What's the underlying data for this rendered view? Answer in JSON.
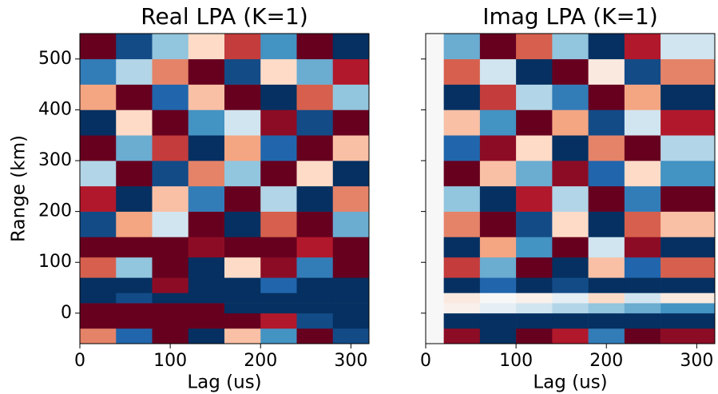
{
  "chart_data": [
    {
      "type": "heatmap",
      "title": "Real LPA (K=1)",
      "xlabel": "Lag (us)",
      "ylabel": "Range (km)",
      "xlim": [
        0,
        320
      ],
      "ylim": [
        -60,
        550
      ],
      "xticks": [
        0,
        100,
        200,
        300
      ],
      "yticks": [
        0,
        100,
        200,
        300,
        400,
        500
      ],
      "show_ytick_labels": true,
      "clim": [
        -1,
        1
      ],
      "colormap": [
        "#053061",
        "#2166ac",
        "#4393c3",
        "#92c5de",
        "#d1e5f0",
        "#f7f7f7",
        "#fddbc7",
        "#f4a582",
        "#d6604d",
        "#b2182b",
        "#67001f"
      ],
      "xbins": [
        0,
        40,
        80,
        120,
        160,
        200,
        240,
        280,
        320
      ],
      "ybins": [
        -60,
        -30,
        0,
        20,
        40,
        70,
        110,
        150,
        200,
        250,
        300,
        350,
        400,
        450,
        500,
        550
      ],
      "values": [
        [
          0.5,
          -0.8,
          1,
          -1,
          0.3,
          -0.6,
          1,
          -0.9
        ],
        [
          1,
          1,
          1,
          1,
          1,
          0.8,
          -0.9,
          -1
        ],
        [
          1,
          1,
          1,
          1,
          -1,
          -1,
          -1,
          -1
        ],
        [
          -1,
          -0.9,
          -1,
          -1,
          -1,
          -1,
          -1,
          -1
        ],
        [
          -1,
          -1,
          0.9,
          -1,
          -1,
          -0.8,
          -1,
          -1
        ],
        [
          0.6,
          -0.4,
          1,
          -1,
          0.2,
          0.9,
          -0.7,
          1
        ],
        [
          1,
          1,
          1,
          0.9,
          1,
          1,
          0.8,
          1
        ],
        [
          -0.9,
          0.4,
          -0.2,
          1,
          -1,
          0.6,
          1,
          -0.5
        ],
        [
          0.8,
          -1,
          0.3,
          -0.7,
          1,
          -0.3,
          -1,
          0.5
        ],
        [
          -0.3,
          1,
          -0.9,
          0.5,
          -0.4,
          1,
          0.2,
          -1
        ],
        [
          1,
          -0.5,
          0.7,
          -1,
          0.4,
          -0.8,
          1,
          0.3
        ],
        [
          -1,
          0.2,
          1,
          -0.6,
          -0.2,
          0.9,
          -0.9,
          1
        ],
        [
          0.4,
          1,
          -0.8,
          0.3,
          1,
          -1,
          0.6,
          -0.4
        ],
        [
          -0.7,
          -0.3,
          0.5,
          1,
          -0.9,
          0.2,
          -0.5,
          0.8
        ],
        [
          1,
          -0.9,
          -0.4,
          0.2,
          0.7,
          -0.6,
          1,
          -1
        ]
      ]
    },
    {
      "type": "heatmap",
      "title": "Imag LPA (K=1)",
      "xlabel": "Lag (us)",
      "xlim": [
        0,
        320
      ],
      "ylim": [
        -60,
        550
      ],
      "xticks": [
        0,
        100,
        200,
        300
      ],
      "yticks": [
        0,
        100,
        200,
        300,
        400,
        500
      ],
      "show_ytick_labels": false,
      "clim": [
        -1,
        1
      ],
      "colormap": [
        "#053061",
        "#2166ac",
        "#4393c3",
        "#92c5de",
        "#d1e5f0",
        "#f7f7f7",
        "#fddbc7",
        "#f4a582",
        "#d6604d",
        "#b2182b",
        "#67001f"
      ],
      "xbins": [
        0,
        20,
        60,
        100,
        140,
        180,
        220,
        260,
        320
      ],
      "ybins": [
        -60,
        -30,
        0,
        20,
        40,
        70,
        110,
        150,
        200,
        250,
        300,
        350,
        400,
        450,
        500,
        550
      ],
      "values": [
        [
          0,
          0.9,
          -1,
          1,
          0.8,
          -0.7,
          1,
          0.9
        ],
        [
          0,
          -1,
          -1,
          -1,
          -1,
          -1,
          -1,
          -1
        ],
        [
          0,
          0.05,
          -0.1,
          -0.2,
          -0.3,
          -0.4,
          -0.5,
          -0.6
        ],
        [
          0,
          0.1,
          0,
          0.05,
          -0.1,
          0.2,
          -0.2,
          0.1
        ],
        [
          0,
          -1,
          -0.8,
          -1,
          -0.9,
          -1,
          -1,
          -1
        ],
        [
          0,
          0.7,
          -0.5,
          1,
          -1,
          0.3,
          -0.8,
          0.6
        ],
        [
          0,
          -1,
          0.4,
          -0.6,
          1,
          -0.2,
          0.9,
          -1
        ],
        [
          0,
          0.5,
          1,
          -0.9,
          0.2,
          -1,
          0.6,
          0.3
        ],
        [
          0,
          -0.4,
          -1,
          0.8,
          -0.3,
          1,
          -0.7,
          1
        ],
        [
          0,
          1,
          0.3,
          -0.5,
          0.9,
          -0.8,
          0.2,
          -0.6
        ],
        [
          0,
          -0.8,
          0.9,
          0.2,
          -1,
          0.5,
          1,
          -0.3
        ],
        [
          0,
          0.3,
          -0.6,
          1,
          0.4,
          -0.9,
          -0.2,
          0.8
        ],
        [
          0,
          -1,
          0.7,
          -0.3,
          -0.7,
          1,
          0.4,
          -1
        ],
        [
          0,
          0.6,
          -0.2,
          -1,
          1,
          0.1,
          -0.9,
          0.5
        ],
        [
          0,
          -0.5,
          1,
          0.6,
          -0.4,
          -1,
          0.8,
          -0.2
        ]
      ]
    }
  ]
}
